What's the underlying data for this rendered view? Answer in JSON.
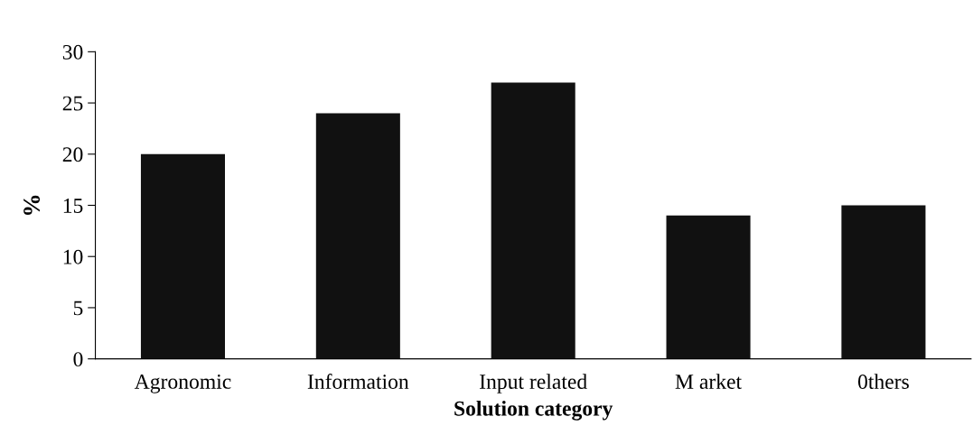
{
  "chart_data": {
    "type": "bar",
    "xlabel": "Solution category",
    "ylabel": "%",
    "categories": [
      "Agronomic",
      "Information",
      "Input related",
      "M arket",
      "0thers"
    ],
    "values": [
      20,
      24,
      27,
      14,
      15
    ],
    "color": "#111111",
    "ylim": [
      0,
      30
    ],
    "yticks": [
      0,
      5,
      10,
      15,
      20,
      25,
      30
    ],
    "grid": false
  }
}
